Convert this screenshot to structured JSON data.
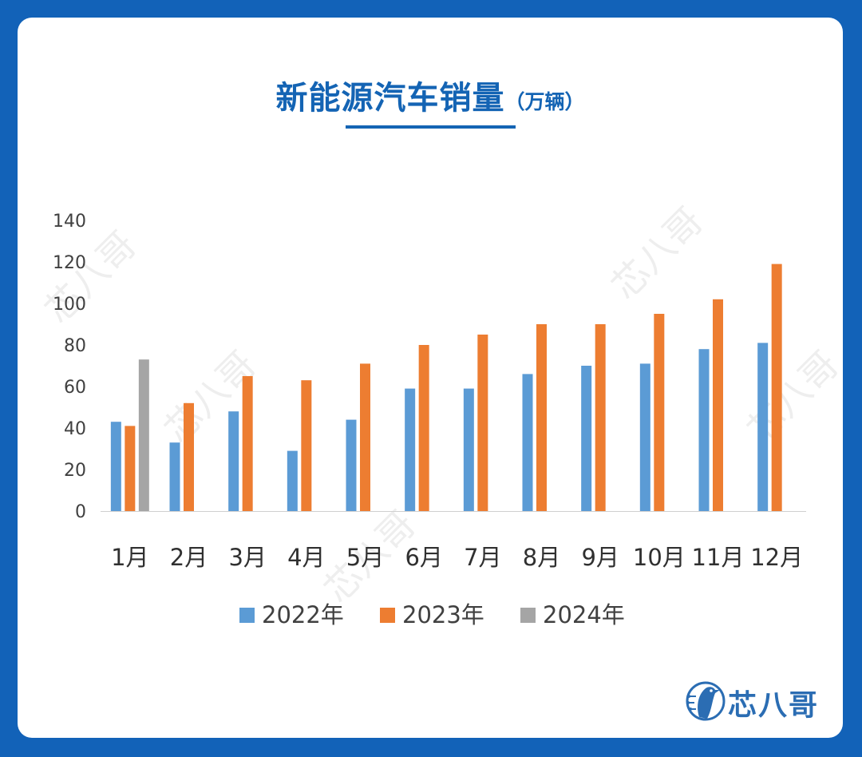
{
  "title": {
    "main": "新能源汽车销量",
    "unit": "（万辆）"
  },
  "brand": {
    "name": "芯八哥",
    "icon": "bird-logo-icon",
    "watermark": "芯八哥"
  },
  "colors": {
    "background": "#1262b8",
    "title": "#1464b4",
    "series_2022": "#5b9bd5",
    "series_2023": "#ed7d31",
    "series_2024": "#a5a5a5"
  },
  "chart_data": {
    "type": "bar",
    "title": "新能源汽车销量（万辆）",
    "categories": [
      "1月",
      "2月",
      "3月",
      "4月",
      "5月",
      "6月",
      "7月",
      "8月",
      "9月",
      "10月",
      "11月",
      "12月"
    ],
    "series": [
      {
        "name": "2022年",
        "values": [
          43,
          33,
          48,
          29,
          44,
          59,
          59,
          66,
          70,
          71,
          78,
          81
        ]
      },
      {
        "name": "2023年",
        "values": [
          41,
          52,
          65,
          63,
          71,
          80,
          85,
          90,
          90,
          95,
          102,
          119
        ]
      },
      {
        "name": "2024年",
        "values": [
          73,
          null,
          null,
          null,
          null,
          null,
          null,
          null,
          null,
          null,
          null,
          null
        ]
      }
    ],
    "ylim": [
      0,
      140
    ],
    "yticks": [
      "0",
      "20",
      "40",
      "60",
      "80",
      "100",
      "120",
      "140"
    ],
    "xlabel": "",
    "ylabel": "",
    "grid": false,
    "legend_position": "bottom"
  }
}
